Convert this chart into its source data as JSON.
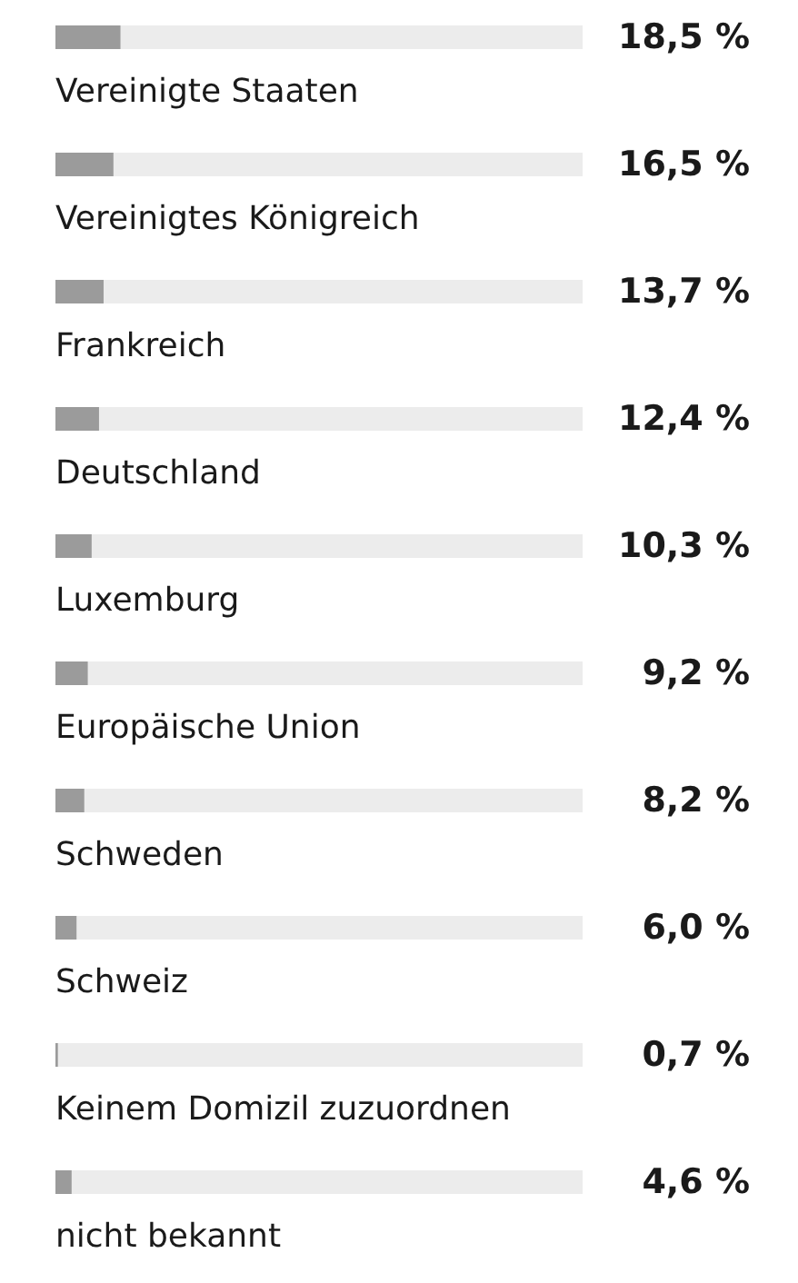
{
  "chart_data": {
    "type": "bar",
    "orientation": "horizontal",
    "relative": false,
    "categories": [
      "Vereinigte Staaten",
      "Vereinigtes Königreich",
      "Frankreich",
      "Deutschland",
      "Luxemburg",
      "Europäische Union",
      "Schweden",
      "Schweiz",
      "Keinem Domizil zuzuordnen",
      "nicht bekannt"
    ],
    "values": [
      18.5,
      16.5,
      13.7,
      12.4,
      10.3,
      9.2,
      8.2,
      6.0,
      0.7,
      4.6
    ],
    "value_labels": [
      "18,5 %",
      "16,5 %",
      "13,7 %",
      "12,4 %",
      "10,3 %",
      "9,2 %",
      "8,2 %",
      "6,0 %",
      "0,7 %",
      "4,6 %"
    ],
    "color": "#9b9b9b",
    "xlim": [
      0,
      150
    ],
    "tick_labels": false
  }
}
